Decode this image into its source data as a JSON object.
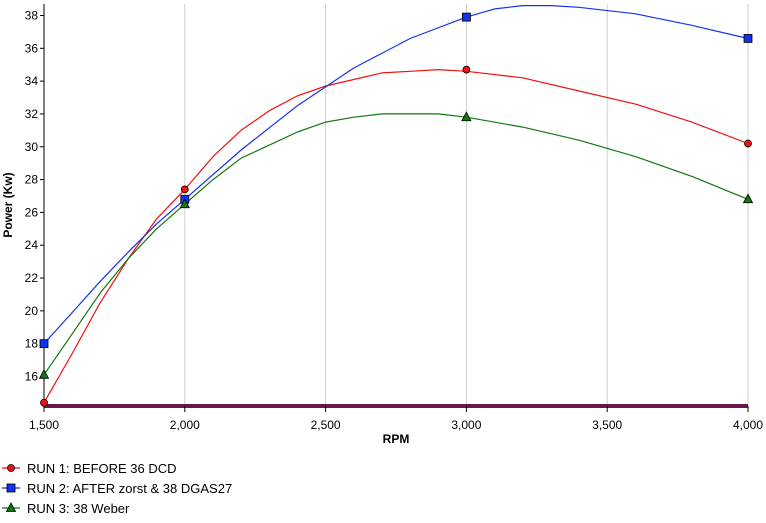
{
  "chart_data": {
    "type": "line",
    "xlabel": "RPM",
    "ylabel": "Power (Kw)",
    "xlim": [
      1500,
      4000
    ],
    "ylim": [
      14.2,
      38.7
    ],
    "x_ticks": [
      1500,
      2000,
      2500,
      3000,
      3500,
      4000
    ],
    "x_tick_labels": [
      "1,500",
      "2,000",
      "2,500",
      "3,000",
      "3,500",
      "4,000"
    ],
    "y_ticks": [
      16,
      18,
      20,
      22,
      24,
      26,
      28,
      30,
      32,
      34,
      36,
      38
    ],
    "y_tick_labels": [
      "16",
      "18",
      "20",
      "22",
      "24",
      "26",
      "28",
      "30",
      "32",
      "34",
      "36",
      "38"
    ],
    "grid": "vertical",
    "legend_placement": "bottom-left",
    "series": [
      {
        "name": "RUN 1: BEFORE 36 DCD",
        "color": "#ee1111",
        "marker": "circle",
        "points": [
          [
            1500,
            14.4
          ],
          [
            2000,
            27.4
          ],
          [
            3000,
            34.7
          ],
          [
            4000,
            30.2
          ]
        ],
        "curve": [
          [
            1500,
            14.4
          ],
          [
            1600,
            17.4
          ],
          [
            1700,
            20.5
          ],
          [
            1800,
            23.2
          ],
          [
            1900,
            25.6
          ],
          [
            2000,
            27.4
          ],
          [
            2100,
            29.4
          ],
          [
            2200,
            31.0
          ],
          [
            2300,
            32.2
          ],
          [
            2400,
            33.1
          ],
          [
            2500,
            33.7
          ],
          [
            2600,
            34.1
          ],
          [
            2700,
            34.5
          ],
          [
            2800,
            34.6
          ],
          [
            2900,
            34.7
          ],
          [
            3000,
            34.6
          ],
          [
            3200,
            34.2
          ],
          [
            3400,
            33.4
          ],
          [
            3600,
            32.6
          ],
          [
            3800,
            31.5
          ],
          [
            4000,
            30.2
          ]
        ]
      },
      {
        "name": "RUN 2: AFTER zorst & 38 DGAS27",
        "color": "#1133ee",
        "marker": "square",
        "points": [
          [
            1500,
            18.0
          ],
          [
            2000,
            26.8
          ],
          [
            3000,
            37.9
          ],
          [
            4000,
            36.6
          ]
        ],
        "curve": [
          [
            1500,
            18.0
          ],
          [
            1600,
            19.9
          ],
          [
            1700,
            21.8
          ],
          [
            1800,
            23.6
          ],
          [
            1900,
            25.3
          ],
          [
            2000,
            26.8
          ],
          [
            2200,
            29.8
          ],
          [
            2400,
            32.5
          ],
          [
            2600,
            34.8
          ],
          [
            2800,
            36.6
          ],
          [
            3000,
            37.9
          ],
          [
            3100,
            38.4
          ],
          [
            3200,
            38.6
          ],
          [
            3300,
            38.6
          ],
          [
            3400,
            38.5
          ],
          [
            3600,
            38.1
          ],
          [
            3800,
            37.4
          ],
          [
            4000,
            36.6
          ]
        ]
      },
      {
        "name": "RUN 3: 38 Weber",
        "color": "#117711",
        "marker": "triangle",
        "points": [
          [
            1500,
            16.1
          ],
          [
            2000,
            26.5
          ],
          [
            3000,
            31.8
          ],
          [
            4000,
            26.8
          ]
        ],
        "curve": [
          [
            1500,
            16.1
          ],
          [
            1600,
            18.6
          ],
          [
            1700,
            21.1
          ],
          [
            1800,
            23.2
          ],
          [
            1900,
            25.0
          ],
          [
            2000,
            26.5
          ],
          [
            2100,
            28.0
          ],
          [
            2200,
            29.3
          ],
          [
            2400,
            30.9
          ],
          [
            2500,
            31.5
          ],
          [
            2600,
            31.8
          ],
          [
            2700,
            32.0
          ],
          [
            2800,
            32.0
          ],
          [
            2900,
            32.0
          ],
          [
            3000,
            31.8
          ],
          [
            3200,
            31.2
          ],
          [
            3400,
            30.4
          ],
          [
            3600,
            29.4
          ],
          [
            3800,
            28.2
          ],
          [
            4000,
            26.8
          ]
        ]
      }
    ]
  }
}
